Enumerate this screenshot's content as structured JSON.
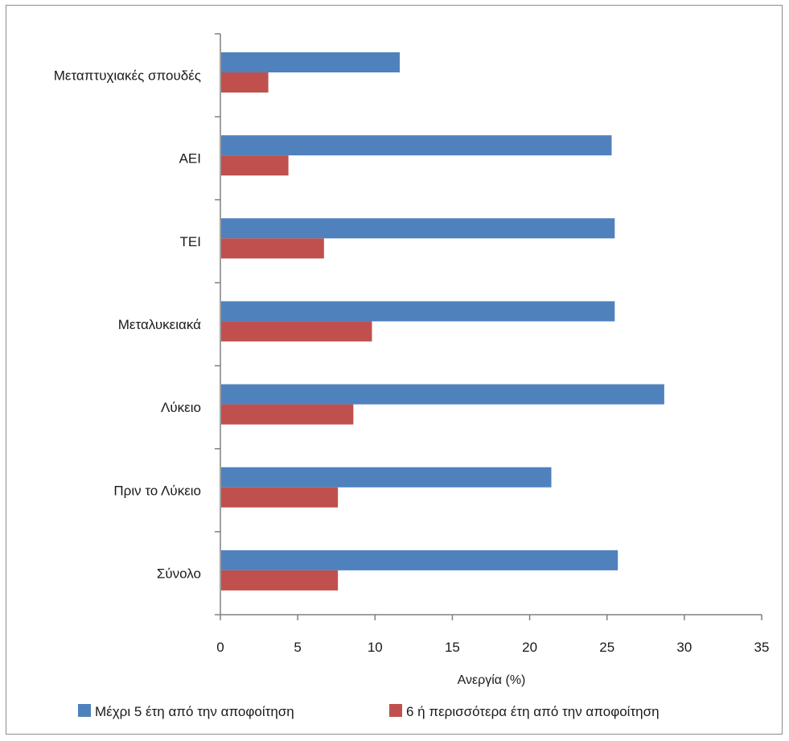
{
  "chart_data": {
    "type": "bar",
    "orientation": "horizontal",
    "categories": [
      "Μεταπτυχιακές σπουδές",
      "ΑΕΙ",
      "ΤΕΙ",
      "Μεταλυκειακά",
      "Λύκειο",
      "Πριν το Λύκειο",
      "Σύνολο"
    ],
    "series": [
      {
        "name": "Μέχρι 5 έτη από την αποφοίτηση",
        "color": "#4f81bd",
        "values": [
          11.6,
          25.3,
          25.5,
          25.5,
          28.7,
          21.4,
          25.7
        ]
      },
      {
        "name": "6 ή περισσότερα έτη από την αποφοίτηση",
        "color": "#c0504d",
        "values": [
          3.1,
          4.4,
          6.7,
          9.8,
          8.6,
          7.6,
          7.6
        ]
      }
    ],
    "xlabel": "Ανεργία (%)",
    "ylabel": "",
    "xlim": [
      0,
      35
    ],
    "xticks": [
      0,
      5,
      10,
      15,
      20,
      25,
      30,
      35
    ],
    "grid": false,
    "legend": "bottom"
  }
}
